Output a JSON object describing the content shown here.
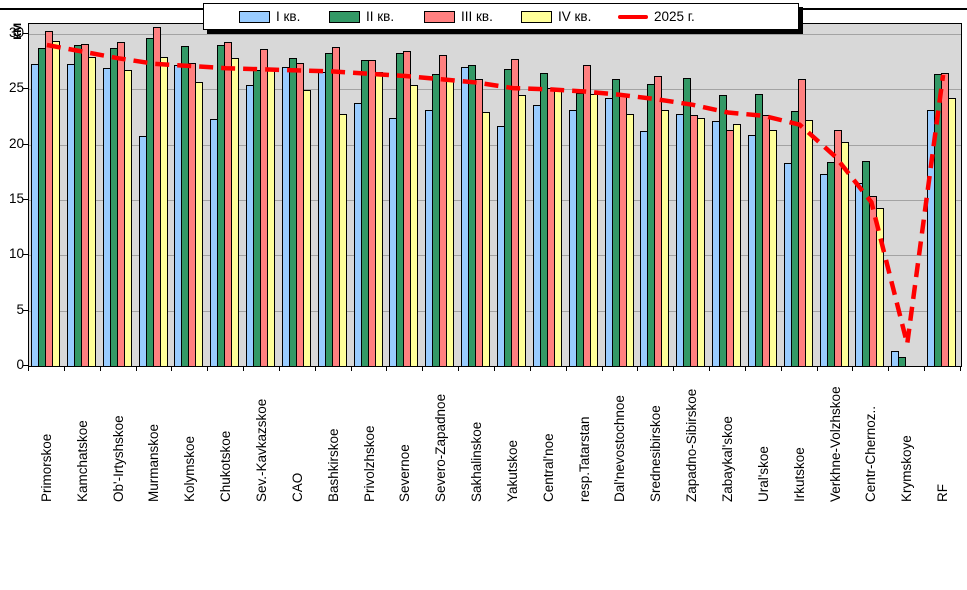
{
  "chart_data": {
    "type": "bar",
    "title": "",
    "xlabel": "",
    "ylabel": "км",
    "ylim": [
      0,
      31
    ],
    "yticks": [
      0,
      5,
      10,
      15,
      20,
      25,
      30
    ],
    "grid": true,
    "legend_position": "top",
    "plot_bg_color": "#d8d8d8",
    "categories": [
      "Primorskoe",
      "Kamchatskoe",
      "Ob'-Irtyshskoe",
      "Murmanskoe",
      "Kolymskoe",
      "Chukotskoe",
      "Sev.-Kavkazskoe",
      "CAO",
      "Bashkirskoe",
      "Privolzhskoe",
      "Severnoe",
      "Severo-Zapadnoe",
      "Sakhalinskoe",
      "Yakutskoe",
      "Central'noe",
      "resp.Tatarstan",
      "Dal'nevostochnoe",
      "Srednesibirskoe",
      "Zapadno-Sibirskoe",
      "Zabaykal'skoe",
      "Ural'skoe",
      "Irkutskoe",
      "Verkhne-Volzhskoe",
      "Centr-Chernoz..",
      "Krymskoye",
      "RF"
    ],
    "series": [
      {
        "name": "I кв.",
        "color": "#99CCFF",
        "values": [
          27.3,
          27.3,
          26.9,
          20.8,
          27.2,
          22.3,
          25.4,
          27.0,
          26.6,
          23.8,
          22.4,
          23.1,
          27.0,
          21.7,
          23.6,
          23.1,
          24.2,
          21.2,
          22.8,
          22.1,
          20.9,
          18.3,
          17.3,
          16.5,
          1.4,
          23.1
        ]
      },
      {
        "name": "II кв.",
        "color": "#339966",
        "values": [
          28.7,
          29.0,
          28.7,
          29.6,
          28.9,
          29.0,
          26.7,
          27.8,
          28.3,
          27.6,
          28.3,
          26.4,
          27.2,
          26.8,
          26.5,
          24.7,
          25.9,
          25.5,
          26.0,
          24.5,
          24.6,
          23.0,
          18.4,
          18.5,
          0.8,
          26.4
        ]
      },
      {
        "name": "III кв.",
        "color": "#FF8080",
        "values": [
          30.3,
          29.1,
          29.3,
          30.6,
          27.4,
          29.3,
          28.6,
          27.4,
          28.8,
          27.6,
          28.5,
          28.1,
          25.9,
          27.7,
          25.1,
          27.2,
          24.6,
          26.2,
          22.7,
          21.3,
          22.7,
          25.9,
          21.3,
          15.4,
          0,
          26.5
        ]
      },
      {
        "name": "IV кв.",
        "color": "#FFFF99",
        "values": [
          29.4,
          27.9,
          26.7,
          27.9,
          25.7,
          27.8,
          26.9,
          24.9,
          22.8,
          26.6,
          25.4,
          25.9,
          22.9,
          24.5,
          24.9,
          24.6,
          22.8,
          23.1,
          22.4,
          21.9,
          21.3,
          22.2,
          20.2,
          14.3,
          0,
          24.2
        ]
      }
    ],
    "line_series": {
      "name": "2025 г.",
      "color": "#FF0000",
      "style": "dashed",
      "width": 4.5,
      "values": [
        29.0,
        28.4,
        27.8,
        27.3,
        27.1,
        26.9,
        26.8,
        26.7,
        26.6,
        26.4,
        26.2,
        25.9,
        25.6,
        25.1,
        25.0,
        24.8,
        24.5,
        24.1,
        23.6,
        22.9,
        22.6,
        21.8,
        18.9,
        14.8,
        2.0,
        26.3
      ]
    }
  }
}
